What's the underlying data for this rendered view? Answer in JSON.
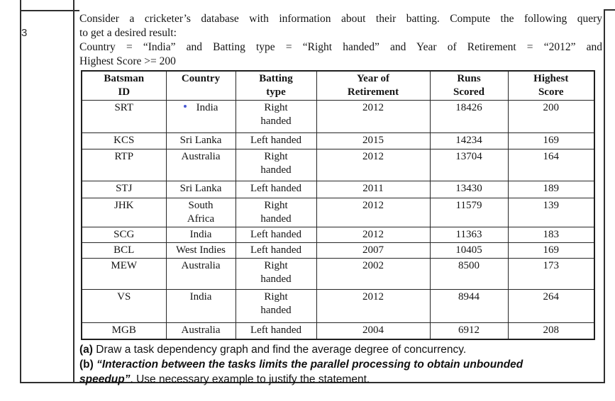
{
  "page": {
    "question_number": "3",
    "colors": {
      "text": "#151515",
      "border": "#2f2f2f",
      "table_border": "#262626",
      "annotation_dot": "#4a5bd4",
      "background": "#ffffff"
    }
  },
  "question": {
    "lines": [
      "Consider a cricketer’s database with information about their batting. Compute the following query",
      "to get a desired result:",
      "Country = “India” and Batting type = “Right handed” and Year of Retirement = “2012” and",
      "Highest Score >= 200"
    ]
  },
  "table": {
    "headers": [
      "Batsman\nID",
      "Country",
      "Batting\ntype",
      "Year of\nRetirement",
      "Runs\nScored",
      "Highest\nScore"
    ],
    "rows": [
      [
        "SRT",
        "India",
        "Right\nhanded",
        "2012",
        "18426",
        "200"
      ],
      [
        "KCS",
        "Sri Lanka",
        "Left handed",
        "2015",
        "14234",
        "169"
      ],
      [
        "RTP",
        "Australia",
        "Right\nhanded",
        "2012",
        "13704",
        "164"
      ],
      [
        "STJ",
        "Sri Lanka",
        "Left handed",
        "2011",
        "13430",
        "189"
      ],
      [
        "JHK",
        "South\nAfrica",
        "Right\nhanded",
        "2012",
        "11579",
        "139"
      ],
      [
        "SCG",
        "India",
        "Left handed",
        "2012",
        "11363",
        "183"
      ],
      [
        "BCL",
        "West Indies",
        "Left handed",
        "2007",
        "10405",
        "169"
      ],
      [
        "MEW",
        "Australia",
        "Right\nhanded",
        "2002",
        "8500",
        "173"
      ],
      [
        "VS",
        "India",
        "Right\nhanded",
        "2012",
        "8944",
        "264"
      ],
      [
        "MGB",
        "Australia",
        "Left handed",
        "2004",
        "6912",
        "208"
      ]
    ]
  },
  "subquestions": {
    "a_label": "(a)",
    "a_text": "Draw a task dependency graph and find the average degree of concurrency.",
    "b_label": "(b)",
    "b_quote_line1": "“Interaction between the tasks limits the parallel processing to obtain unbounded",
    "b_quote_line2": "speedup”",
    "b_rest": ". Use necessary example to justify the statement."
  }
}
